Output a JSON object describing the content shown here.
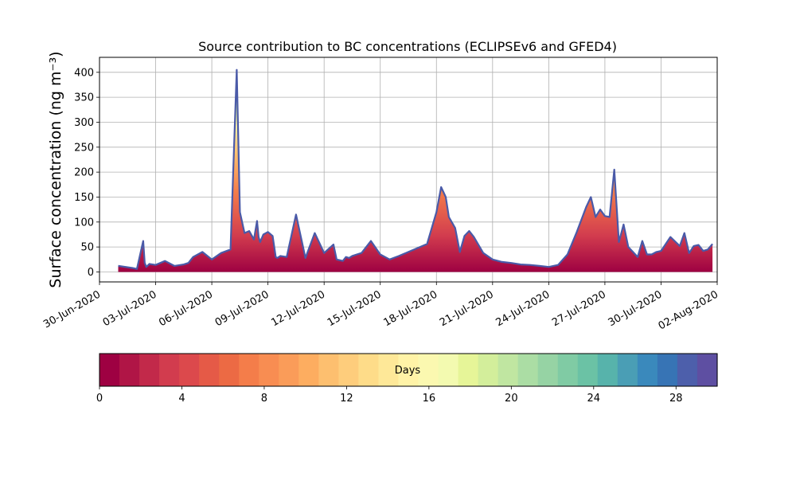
{
  "chart_data": {
    "type": "area",
    "title": "Source contribution to BC concentrations (ECLIPSEv6 and GFED4)",
    "ylabel": "Surface concentration (ng m⁻³)",
    "xlabel": "",
    "ylim": [
      -20,
      430
    ],
    "xlim": [
      "2020-06-30T00:00",
      "2020-08-02T00:00"
    ],
    "yticks": [
      0,
      50,
      100,
      150,
      200,
      250,
      300,
      350,
      400
    ],
    "xticks": [
      "30-Jun-2020",
      "03-Jul-2020",
      "06-Jul-2020",
      "09-Jul-2020",
      "12-Jul-2020",
      "15-Jul-2020",
      "18-Jul-2020",
      "21-Jul-2020",
      "24-Jul-2020",
      "27-Jul-2020",
      "30-Jul-2020",
      "02-Aug-2020"
    ],
    "grid": true,
    "stack_by": "Days",
    "total": {
      "x": [
        "2020-07-01T00:00",
        "2020-07-01T18:00",
        "2020-07-02T00:00",
        "2020-07-02T08:00",
        "2020-07-02T10:00",
        "2020-07-02T12:00",
        "2020-07-02T16:00",
        "2020-07-03T00:00",
        "2020-07-03T12:00",
        "2020-07-04T00:00",
        "2020-07-04T12:00",
        "2020-07-04T18:00",
        "2020-07-05T00:00",
        "2020-07-05T12:00",
        "2020-07-06T00:00",
        "2020-07-06T12:00",
        "2020-07-07T00:00",
        "2020-07-07T08:00",
        "2020-07-07T12:00",
        "2020-07-07T18:00",
        "2020-07-08T00:00",
        "2020-07-08T06:00",
        "2020-07-08T10:00",
        "2020-07-08T12:00",
        "2020-07-08T14:00",
        "2020-07-08T18:00",
        "2020-07-09T00:00",
        "2020-07-09T06:00",
        "2020-07-09T10:00",
        "2020-07-09T12:00",
        "2020-07-09T16:00",
        "2020-07-10T00:00",
        "2020-07-10T12:00",
        "2020-07-11T00:00",
        "2020-07-11T12:00",
        "2020-07-12T00:00",
        "2020-07-12T12:00",
        "2020-07-12T16:00",
        "2020-07-13T00:00",
        "2020-07-13T04:00",
        "2020-07-13T08:00",
        "2020-07-13T12:00",
        "2020-07-13T18:00",
        "2020-07-14T00:00",
        "2020-07-14T12:00",
        "2020-07-15T00:00",
        "2020-07-15T12:00",
        "2020-07-16T00:00",
        "2020-07-16T12:00",
        "2020-07-17T00:00",
        "2020-07-17T12:00",
        "2020-07-18T00:00",
        "2020-07-18T06:00",
        "2020-07-18T12:00",
        "2020-07-18T16:00",
        "2020-07-19T00:00",
        "2020-07-19T06:00",
        "2020-07-19T12:00",
        "2020-07-19T18:00",
        "2020-07-20T00:00",
        "2020-07-20T12:00",
        "2020-07-21T00:00",
        "2020-07-21T12:00",
        "2020-07-22T00:00",
        "2020-07-22T12:00",
        "2020-07-23T00:00",
        "2020-07-23T12:00",
        "2020-07-24T00:00",
        "2020-07-24T12:00",
        "2020-07-25T00:00",
        "2020-07-25T12:00",
        "2020-07-26T00:00",
        "2020-07-26T06:00",
        "2020-07-26T12:00",
        "2020-07-26T18:00",
        "2020-07-27T00:00",
        "2020-07-27T06:00",
        "2020-07-27T12:00",
        "2020-07-27T18:00",
        "2020-07-28T00:00",
        "2020-07-28T06:00",
        "2020-07-28T12:00",
        "2020-07-28T18:00",
        "2020-07-29T00:00",
        "2020-07-29T06:00",
        "2020-07-29T12:00",
        "2020-07-29T18:00",
        "2020-07-30T00:00",
        "2020-07-30T12:00",
        "2020-07-31T00:00",
        "2020-07-31T06:00",
        "2020-07-31T12:00",
        "2020-07-31T18:00",
        "2020-08-01T00:00",
        "2020-08-01T06:00",
        "2020-08-01T12:00",
        "2020-08-01T18:00"
      ],
      "y": [
        12,
        8,
        6,
        62,
        18,
        10,
        16,
        14,
        22,
        12,
        15,
        18,
        30,
        40,
        25,
        38,
        45,
        405,
        120,
        78,
        82,
        65,
        102,
        70,
        60,
        75,
        80,
        72,
        30,
        28,
        32,
        30,
        115,
        28,
        78,
        38,
        55,
        25,
        22,
        30,
        28,
        32,
        35,
        38,
        62,
        35,
        25,
        32,
        40,
        48,
        56,
        120,
        170,
        150,
        110,
        88,
        40,
        72,
        82,
        70,
        38,
        25,
        20,
        18,
        15,
        14,
        12,
        10,
        14,
        35,
        80,
        130,
        150,
        110,
        125,
        112,
        110,
        205,
        60,
        95,
        50,
        40,
        30,
        62,
        35,
        35,
        40,
        42,
        70,
        52,
        78,
        38,
        52,
        54,
        42,
        45,
        56
      ]
    },
    "colorbar": {
      "label": "Days",
      "min": 0,
      "max": 30,
      "ticks": [
        0,
        4,
        8,
        12,
        16,
        20,
        24,
        28
      ],
      "colormap": "Spectral",
      "colors": [
        "#9e0142",
        "#b01546",
        "#c2294a",
        "#d23c4e",
        "#dc494c",
        "#e55a47",
        "#ec6a44",
        "#f47d4a",
        "#f88d52",
        "#fa9c59",
        "#fdad60",
        "#fdbf6f",
        "#fecd7c",
        "#fedc89",
        "#fee898",
        "#fff3a7",
        "#fbf8b0",
        "#f3fab0",
        "#e6f598",
        "#d3ee9b",
        "#c0e6a1",
        "#abdda4",
        "#96d3a4",
        "#80cba4",
        "#6bc2a5",
        "#57b3ab",
        "#4a9eb5",
        "#3a89bc",
        "#3774b5",
        "#4d5fab",
        "#5e4fa2"
      ]
    }
  }
}
